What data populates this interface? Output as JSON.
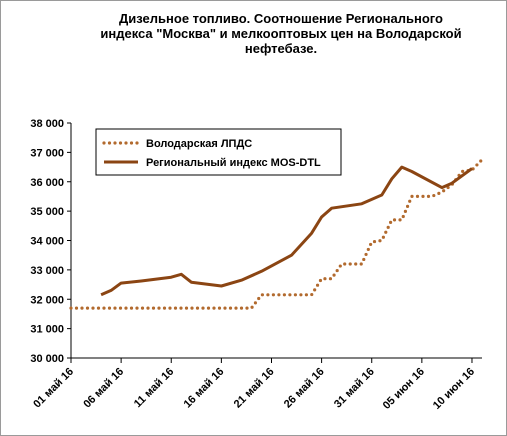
{
  "chart_data": {
    "type": "line",
    "title_lines": [
      "Дизельное топливо. Соотношение Регионального",
      "индекса \"Москва\" и мелкооптовых цен на Володарской",
      "нефтебазе."
    ],
    "ylim": [
      30000,
      38000
    ],
    "yticks": [
      30000,
      31000,
      32000,
      33000,
      34000,
      35000,
      36000,
      37000,
      38000
    ],
    "ytick_labels": [
      "30 000",
      "31 000",
      "32 000",
      "33 000",
      "34 000",
      "35 000",
      "36 000",
      "37 000",
      "38 000"
    ],
    "xlim": [
      "2016-05-01",
      "2016-06-11"
    ],
    "xtick_dates": [
      "2016-05-01",
      "2016-05-06",
      "2016-05-11",
      "2016-05-16",
      "2016-05-21",
      "2016-05-26",
      "2016-05-31",
      "2016-06-05",
      "2016-06-10"
    ],
    "xtick_labels": [
      "01 май 16",
      "06 май 16",
      "11 май 16",
      "16 май 16",
      "21 май 16",
      "26 май 16",
      "31 май 16",
      "05 июн 16",
      "10 июн 16"
    ],
    "grid": false,
    "legend_placement": "top-left",
    "series": [
      {
        "name": "Володарская ЛПДС",
        "color": "#b26a2e",
        "style": "dotted",
        "points": [
          [
            "2016-05-01",
            31700
          ],
          [
            "2016-05-19",
            31700
          ],
          [
            "2016-05-20",
            32150
          ],
          [
            "2016-05-25",
            32150
          ],
          [
            "2016-05-26",
            32700
          ],
          [
            "2016-05-27",
            32700
          ],
          [
            "2016-05-28",
            33200
          ],
          [
            "2016-05-30",
            33200
          ],
          [
            "2016-05-31",
            33950
          ],
          [
            "2016-06-01",
            34000
          ],
          [
            "2016-06-02",
            34700
          ],
          [
            "2016-06-03",
            34700
          ],
          [
            "2016-06-04",
            35500
          ],
          [
            "2016-06-06",
            35500
          ],
          [
            "2016-06-07",
            35650
          ],
          [
            "2016-06-08",
            35900
          ],
          [
            "2016-06-09",
            36350
          ],
          [
            "2016-06-10",
            36400
          ],
          [
            "2016-06-11",
            36750
          ]
        ]
      },
      {
        "name": "Региональный индекс MOS-DTL",
        "color": "#8b4513",
        "style": "solid",
        "points": [
          [
            "2016-05-04",
            32150
          ],
          [
            "2016-05-05",
            32300
          ],
          [
            "2016-05-06",
            32550
          ],
          [
            "2016-05-08",
            32620
          ],
          [
            "2016-05-11",
            32750
          ],
          [
            "2016-05-12",
            32850
          ],
          [
            "2016-05-13",
            32580
          ],
          [
            "2016-05-16",
            32450
          ],
          [
            "2016-05-18",
            32650
          ],
          [
            "2016-05-20",
            32950
          ],
          [
            "2016-05-23",
            33500
          ],
          [
            "2016-05-25",
            34250
          ],
          [
            "2016-05-26",
            34800
          ],
          [
            "2016-05-27",
            35100
          ],
          [
            "2016-05-30",
            35250
          ],
          [
            "2016-06-01",
            35550
          ],
          [
            "2016-06-02",
            36100
          ],
          [
            "2016-06-03",
            36500
          ],
          [
            "2016-06-04",
            36350
          ],
          [
            "2016-06-07",
            35800
          ],
          [
            "2016-06-08",
            35950
          ],
          [
            "2016-06-10",
            36450
          ]
        ]
      }
    ]
  }
}
